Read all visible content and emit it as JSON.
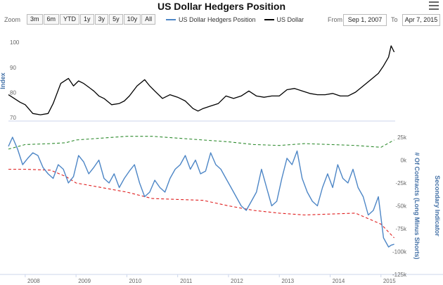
{
  "title": "US Dollar Hedgers Position",
  "toolbar": {
    "zoom_label": "Zoom",
    "zoom_buttons": [
      "3m",
      "6m",
      "YTD",
      "1y",
      "3y",
      "5y",
      "10y",
      "All"
    ],
    "from_label": "From",
    "from_value": "Sep 1, 2007",
    "to_label": "To",
    "to_value": "Apr 7, 2015"
  },
  "legend": [
    {
      "name": "US Dollar Hedgers Position",
      "color": "#4d86c6"
    },
    {
      "name": "US Dollar",
      "color": "#000000"
    }
  ],
  "colors": {
    "hedgers": "#4d86c6",
    "usd": "#000000",
    "upper_band": "#2e8b2e",
    "lower_band": "#e02020",
    "axis_title": "#4572a7"
  },
  "chart_data": [
    {
      "type": "line",
      "name": "upper-panel",
      "ylabel": "Index",
      "ylim": [
        70,
        102
      ],
      "yticks": [
        70,
        80,
        90,
        100
      ],
      "x_range": [
        "2007-09",
        "2015-04"
      ],
      "x_ticks": [
        "2008",
        "2009",
        "2010",
        "2011",
        "2012",
        "2013",
        "2014",
        "2015"
      ],
      "grid": false,
      "series": [
        {
          "name": "US Dollar",
          "x": [
            2007.67,
            2007.9,
            2008.0,
            2008.15,
            2008.3,
            2008.45,
            2008.55,
            2008.7,
            2008.85,
            2008.95,
            2009.05,
            2009.15,
            2009.25,
            2009.35,
            2009.45,
            2009.55,
            2009.7,
            2009.85,
            2009.95,
            2010.05,
            2010.2,
            2010.35,
            2010.45,
            2010.55,
            2010.7,
            2010.85,
            2011.0,
            2011.15,
            2011.3,
            2011.4,
            2011.5,
            2011.65,
            2011.8,
            2011.95,
            2012.1,
            2012.25,
            2012.4,
            2012.55,
            2012.7,
            2012.85,
            2013.0,
            2013.15,
            2013.3,
            2013.45,
            2013.6,
            2013.75,
            2013.9,
            2014.05,
            2014.2,
            2014.35,
            2014.5,
            2014.65,
            2014.8,
            2014.95,
            2015.05,
            2015.15,
            2015.2,
            2015.26
          ],
          "values": [
            80.5,
            77.5,
            76.5,
            73,
            72.5,
            73,
            77,
            85,
            87,
            84,
            86,
            85,
            83.5,
            82,
            80,
            79,
            76.5,
            77,
            78,
            80,
            84,
            86.5,
            84,
            82,
            79,
            80.5,
            79.5,
            78,
            75,
            74,
            75,
            76,
            77,
            80,
            79,
            80,
            82,
            80,
            79.5,
            80,
            80,
            82.5,
            83,
            82,
            81,
            80.5,
            80.5,
            81,
            80,
            80,
            81.5,
            84,
            86.5,
            89,
            92,
            95.5,
            100,
            97.5
          ]
        }
      ]
    },
    {
      "type": "line",
      "name": "lower-panel",
      "ylabel": "# Of Contracts (Long Minus Shorts)",
      "ylabel_secondary": "Secondary Indicator",
      "ylim": [
        -125,
        25
      ],
      "yticks": [
        25,
        0,
        -25,
        -50,
        -75,
        -100,
        -125
      ],
      "ytick_labels": [
        "25k",
        "0k",
        "-25k",
        "-50k",
        "-75k",
        "-100k",
        "-125k"
      ],
      "x_range": [
        "2007-09",
        "2015-04"
      ],
      "x_ticks": [
        "2008",
        "2009",
        "2010",
        "2011",
        "2012",
        "2013",
        "2014",
        "2015"
      ],
      "grid": false,
      "series": [
        {
          "name": "US Dollar Hedgers Position",
          "x": [
            2007.67,
            2007.75,
            2007.85,
            2007.95,
            2008.05,
            2008.15,
            2008.25,
            2008.35,
            2008.45,
            2008.55,
            2008.65,
            2008.75,
            2008.85,
            2008.95,
            2009.05,
            2009.15,
            2009.25,
            2009.35,
            2009.45,
            2009.55,
            2009.65,
            2009.75,
            2009.85,
            2009.95,
            2010.05,
            2010.15,
            2010.25,
            2010.35,
            2010.45,
            2010.55,
            2010.65,
            2010.75,
            2010.85,
            2010.95,
            2011.05,
            2011.15,
            2011.25,
            2011.35,
            2011.45,
            2011.55,
            2011.65,
            2011.75,
            2011.85,
            2011.95,
            2012.05,
            2012.15,
            2012.25,
            2012.35,
            2012.45,
            2012.55,
            2012.65,
            2012.75,
            2012.85,
            2012.95,
            2013.05,
            2013.15,
            2013.25,
            2013.35,
            2013.45,
            2013.55,
            2013.65,
            2013.75,
            2013.85,
            2013.95,
            2014.05,
            2014.15,
            2014.25,
            2014.35,
            2014.45,
            2014.55,
            2014.65,
            2014.75,
            2014.85,
            2014.95,
            2015.05,
            2015.15,
            2015.2,
            2015.26
          ],
          "values": [
            15,
            25,
            12,
            -5,
            2,
            8,
            5,
            -8,
            -15,
            -20,
            -5,
            -10,
            -25,
            -18,
            5,
            -2,
            -15,
            -8,
            0,
            -20,
            -25,
            -15,
            -30,
            -20,
            -12,
            -5,
            -25,
            -40,
            -35,
            -22,
            -30,
            -35,
            -20,
            -10,
            -5,
            5,
            -10,
            0,
            -15,
            -12,
            8,
            -5,
            -10,
            -20,
            -30,
            -40,
            -50,
            -55,
            -45,
            -35,
            -10,
            -30,
            -50,
            -45,
            -20,
            2,
            -5,
            10,
            -20,
            -35,
            -45,
            -50,
            -30,
            -15,
            -30,
            -5,
            -20,
            -25,
            -10,
            -30,
            -40,
            -60,
            -55,
            -40,
            -85,
            -95,
            -93,
            -92
          ]
        },
        {
          "name": "upper band",
          "x": [
            2007.67,
            2008.0,
            2008.5,
            2008.8,
            2009.0,
            2009.5,
            2010.0,
            2010.5,
            2011.0,
            2011.5,
            2012.0,
            2012.5,
            2013.0,
            2013.5,
            2014.0,
            2014.5,
            2015.0,
            2015.26
          ],
          "values": [
            12,
            17,
            18,
            19,
            22,
            24,
            26,
            26,
            24,
            22,
            20,
            17,
            16,
            18,
            17,
            16,
            14,
            22
          ]
        },
        {
          "name": "lower band",
          "x": [
            2007.67,
            2008.0,
            2008.5,
            2008.8,
            2009.0,
            2009.5,
            2010.0,
            2010.5,
            2011.0,
            2011.5,
            2012.0,
            2012.5,
            2013.0,
            2013.5,
            2014.0,
            2014.5,
            2015.0,
            2015.26
          ],
          "values": [
            -10,
            -10,
            -11,
            -18,
            -25,
            -30,
            -35,
            -42,
            -43,
            -44,
            -50,
            -55,
            -58,
            -60,
            -59,
            -58,
            -70,
            -85
          ]
        }
      ]
    }
  ]
}
